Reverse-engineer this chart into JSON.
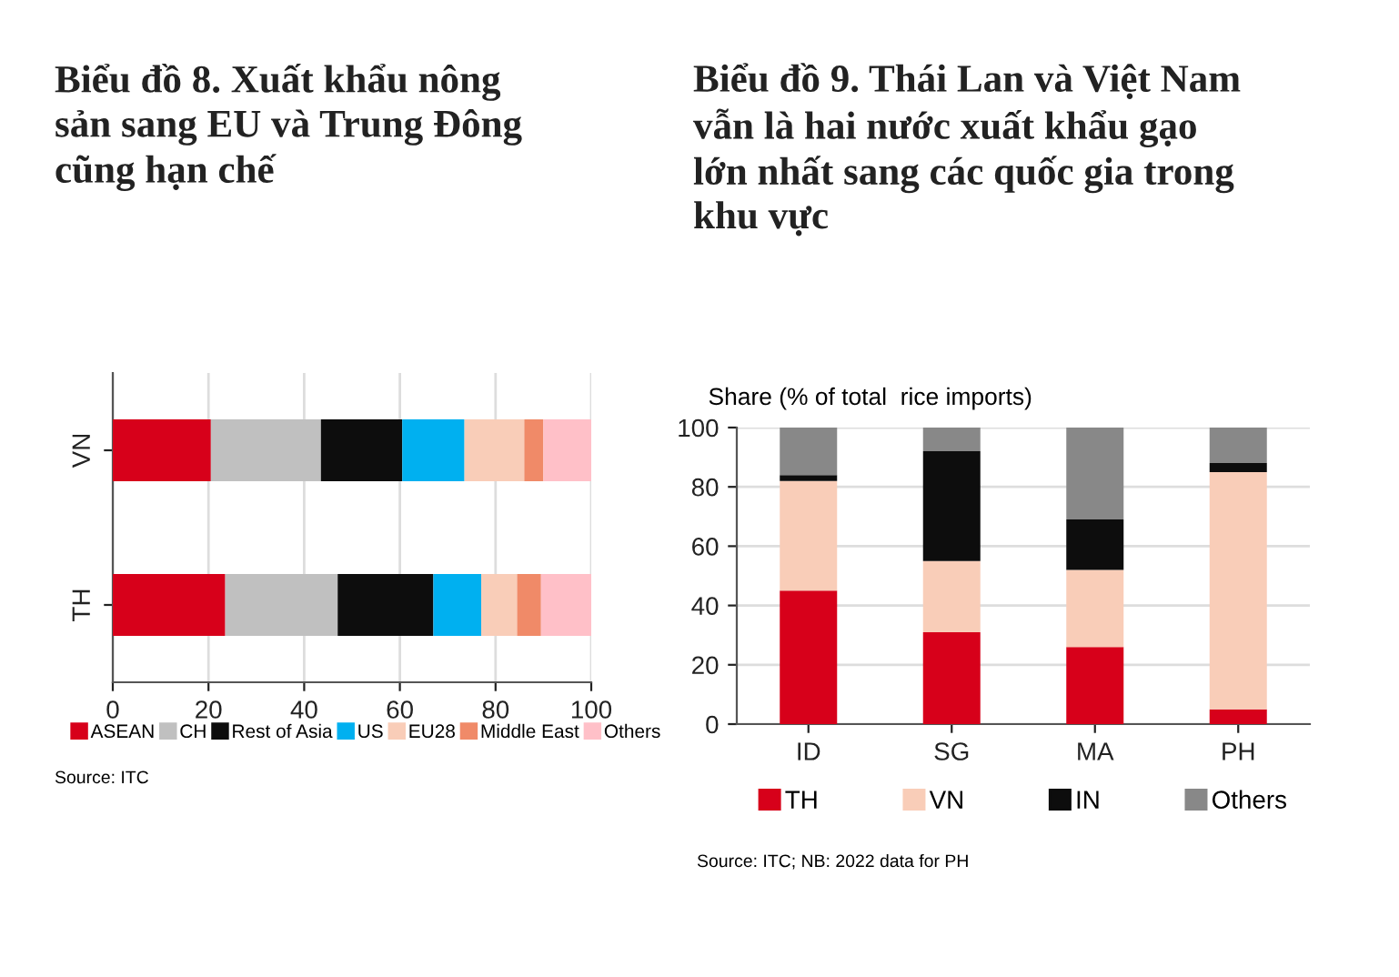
{
  "chart_data": [
    {
      "type": "bar",
      "orientation": "horizontal",
      "stacked": true,
      "title": "Biểu đồ 8. Xuất khẩu nông\nsản sang EU và Trung Đông\ncũng hạn chế",
      "categories": [
        "VN",
        "TH"
      ],
      "xlim": [
        0,
        100
      ],
      "xticks": [
        0,
        20,
        40,
        60,
        80,
        100
      ],
      "grid": "x",
      "legend": "bottom",
      "annotations": [
        "Source: ITC"
      ],
      "series": [
        {
          "name": "ASEAN",
          "color": "#d7001a",
          "values": [
            20.5,
            23.5
          ]
        },
        {
          "name": "CH",
          "color": "#c0c0c0",
          "values": [
            23,
            23.5
          ]
        },
        {
          "name": "Rest of Asia",
          "color": "#0d0d0d",
          "values": [
            17,
            20
          ]
        },
        {
          "name": "US",
          "color": "#00b0f0",
          "values": [
            13,
            10
          ]
        },
        {
          "name": "EU28",
          "color": "#f9cdb8",
          "values": [
            12.5,
            7.5
          ]
        },
        {
          "name": "Middle East",
          "color": "#f08a68",
          "values": [
            4,
            5
          ]
        },
        {
          "name": "Others",
          "color": "#ffc0c8",
          "values": [
            10,
            10.5
          ]
        }
      ]
    },
    {
      "type": "bar",
      "stacked": true,
      "title": "Biểu đồ 9. Thái Lan và Việt Nam\nvẫn là hai nước xuất khẩu gạo\nlớn nhất sang các quốc gia trong\nkhu vực",
      "ylabel": "Share (% of total  rice imports)",
      "categories": [
        "ID",
        "SG",
        "MA",
        "PH"
      ],
      "ylim": [
        0,
        100
      ],
      "yticks": [
        0,
        20,
        40,
        60,
        80,
        100
      ],
      "grid": "y",
      "legend": "bottom",
      "annotations": [
        "Source: ITC; NB: 2022 data for PH"
      ],
      "series": [
        {
          "name": "TH",
          "color": "#d7001a",
          "values": [
            45,
            31,
            26,
            5
          ]
        },
        {
          "name": "VN",
          "color": "#f9cdb8",
          "values": [
            37,
            24,
            26,
            80
          ]
        },
        {
          "name": "IN",
          "color": "#0d0d0d",
          "values": [
            2,
            37,
            17,
            3
          ]
        },
        {
          "name": "Others",
          "color": "#888888",
          "values": [
            16,
            8,
            31,
            12
          ]
        }
      ]
    }
  ]
}
